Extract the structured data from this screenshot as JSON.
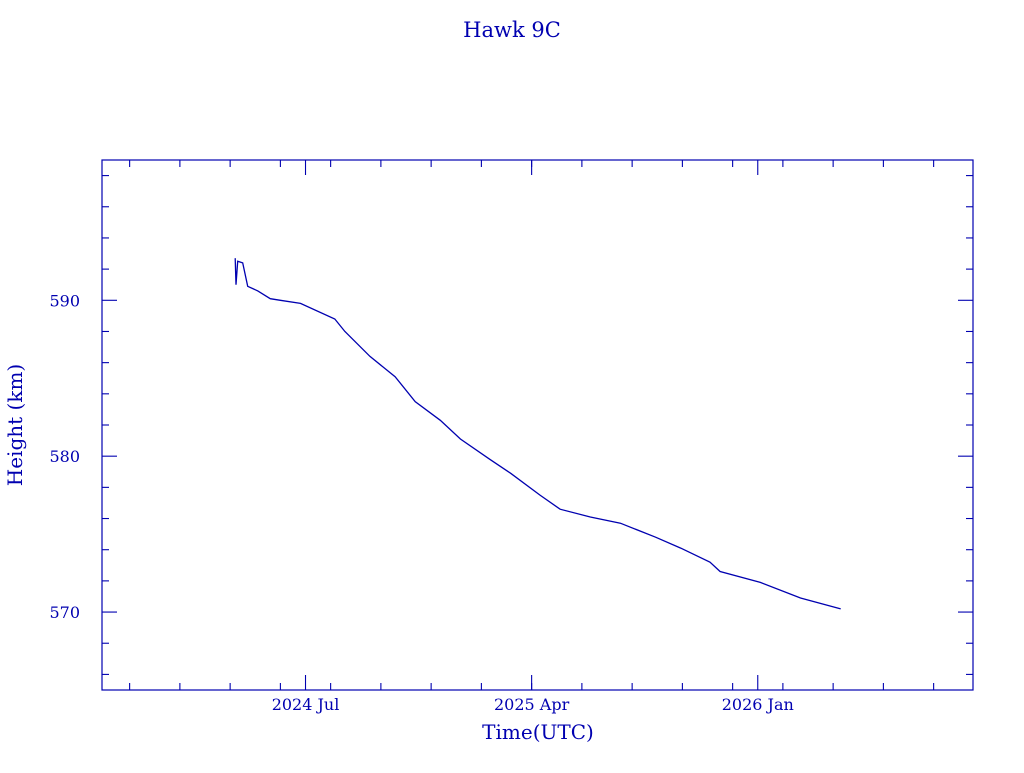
{
  "chart_data": {
    "type": "line",
    "title": "Hawk 9C",
    "xlabel": "Time(UTC)",
    "ylabel": "Height (km)",
    "ylim": [
      565,
      599
    ],
    "xlim": [
      "2023-10-28",
      "2026-09-18"
    ],
    "x_ticks": [
      {
        "date": "2024-07-01",
        "label": "2024 Jul"
      },
      {
        "date": "2025-04-01",
        "label": "2025 Apr"
      },
      {
        "date": "2026-01-01",
        "label": "2026 Jan"
      }
    ],
    "y_ticks": [
      570,
      580,
      590
    ],
    "y_tick_labels": [
      "570",
      "580",
      "590"
    ],
    "color": "#0000b0",
    "series": [
      {
        "name": "Hawk 9C",
        "x": [
          "2024-04-07",
          "2024-04-08",
          "2024-04-10",
          "2024-04-16",
          "2024-04-22",
          "2024-05-04",
          "2024-05-19",
          "2024-06-01",
          "2024-06-25",
          "2024-08-06",
          "2024-08-18",
          "2024-09-18",
          "2024-10-18",
          "2024-11-12",
          "2024-12-12",
          "2025-01-06",
          "2025-02-11",
          "2025-03-06",
          "2025-04-11",
          "2025-05-05",
          "2025-06-11",
          "2025-07-17",
          "2025-08-29",
          "2025-09-29",
          "2025-11-04",
          "2025-11-16",
          "2026-01-04",
          "2026-02-22",
          "2026-04-10"
        ],
        "y": [
          592.7,
          591.0,
          592.5,
          592.4,
          590.9,
          590.6,
          590.1,
          590.0,
          589.8,
          588.8,
          588.0,
          586.4,
          585.1,
          583.5,
          582.3,
          581.1,
          579.8,
          578.9,
          577.5,
          576.6,
          576.1,
          575.7,
          574.8,
          574.1,
          573.2,
          572.6,
          571.9,
          570.9,
          570.2
        ]
      }
    ]
  }
}
